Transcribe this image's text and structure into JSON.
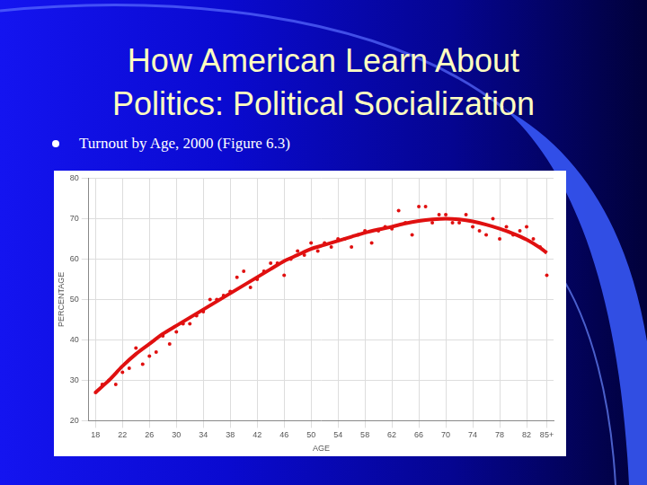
{
  "slide": {
    "title": "How American Learn About Politics: Political Socialization",
    "bullet": "Turnout by Age, 2000 (Figure 6.3)"
  },
  "chart_data": {
    "type": "scatter",
    "xlabel": "AGE",
    "ylabel": "PERCENTAGE",
    "xlim": [
      17,
      86
    ],
    "xticks": [
      18,
      22,
      26,
      30,
      34,
      38,
      42,
      46,
      50,
      54,
      58,
      62,
      66,
      70,
      74,
      78,
      82,
      {
        "value": 85,
        "label": "85+"
      }
    ],
    "ylim": [
      20,
      80
    ],
    "yticks": [
      20,
      30,
      40,
      50,
      60,
      70,
      80
    ],
    "grid": true,
    "series": [
      {
        "type": "scatter",
        "color": "#e01010",
        "marker": "circle",
        "x": [
          18,
          19,
          20,
          21,
          22,
          23,
          24,
          25,
          26,
          27,
          28,
          29,
          30,
          31,
          32,
          33,
          34,
          35,
          36,
          37,
          38,
          39,
          40,
          41,
          42,
          43,
          44,
          45,
          46,
          47,
          48,
          49,
          50,
          51,
          52,
          53,
          54,
          55,
          56,
          57,
          58,
          59,
          60,
          61,
          62,
          63,
          64,
          65,
          66,
          67,
          68,
          69,
          70,
          71,
          72,
          73,
          74,
          75,
          76,
          77,
          78,
          79,
          80,
          81,
          82,
          83,
          84,
          85
        ],
        "values": [
          27,
          29,
          30,
          29,
          32,
          33,
          38,
          34,
          36,
          37,
          41,
          39,
          42,
          44,
          44,
          46,
          47,
          50,
          50,
          51,
          52,
          55.5,
          57,
          53,
          55,
          57,
          59,
          59,
          56,
          60,
          62,
          61,
          64,
          62,
          64,
          63,
          65,
          65,
          63,
          66,
          67,
          64,
          67,
          68,
          67.5,
          72,
          69,
          66,
          73,
          73,
          69,
          71,
          71,
          69,
          69,
          71,
          68,
          67,
          66,
          70,
          65,
          68,
          66,
          67,
          68,
          65,
          63,
          56
        ]
      },
      {
        "type": "line",
        "color": "#e01010",
        "line_style": "solid",
        "x": [
          18,
          20,
          22,
          24,
          26,
          28,
          30,
          32,
          34,
          36,
          38,
          40,
          42,
          44,
          46,
          48,
          50,
          52,
          54,
          56,
          58,
          60,
          62,
          64,
          66,
          68,
          70,
          72,
          74,
          76,
          78,
          80,
          82,
          84,
          85
        ],
        "values": [
          27,
          30,
          33.5,
          36.5,
          39,
          41.5,
          43.5,
          45.5,
          47.5,
          49.5,
          51.5,
          53.5,
          55.5,
          57.5,
          59.5,
          61,
          62.5,
          63.5,
          64.5,
          65.5,
          66.5,
          67.3,
          68,
          68.8,
          69.4,
          69.8,
          70,
          69.8,
          69.3,
          68.5,
          67.5,
          66.3,
          64.8,
          62.8,
          61.5
        ]
      }
    ]
  }
}
